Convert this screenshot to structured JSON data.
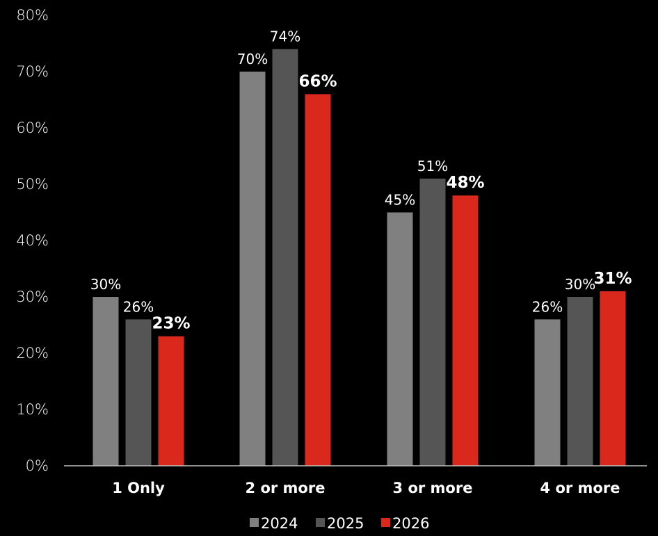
{
  "chart_data": {
    "type": "bar",
    "categories": [
      "1 Only",
      "2 or more",
      "3 or more",
      "4 or more"
    ],
    "series": [
      {
        "name": "2024",
        "values": [
          30,
          70,
          45,
          26
        ],
        "labels": [
          "30%",
          "70%",
          "45%",
          "26%"
        ],
        "color": "#808080",
        "emphasis": false
      },
      {
        "name": "2025",
        "values": [
          26,
          74,
          51,
          30
        ],
        "labels": [
          "26%",
          "74%",
          "51%",
          "30%"
        ],
        "color": "#555555",
        "emphasis": false
      },
      {
        "name": "2026",
        "values": [
          23,
          66,
          48,
          31
        ],
        "labels": [
          "23%",
          "66%",
          "48%",
          "31%"
        ],
        "color": "#DA291C",
        "emphasis": true
      }
    ],
    "y_ticks": [
      "0%",
      "10%",
      "20%",
      "30%",
      "40%",
      "50%",
      "60%",
      "70%",
      "80%"
    ],
    "ylim": [
      0,
      80
    ],
    "y_unit": "%",
    "grid": false,
    "legend_position": "bottom",
    "title": "",
    "xlabel": "",
    "ylabel": ""
  },
  "colors": {
    "background": "#000000",
    "text": "#ffffff",
    "axis_line": "#bfbfbf"
  }
}
